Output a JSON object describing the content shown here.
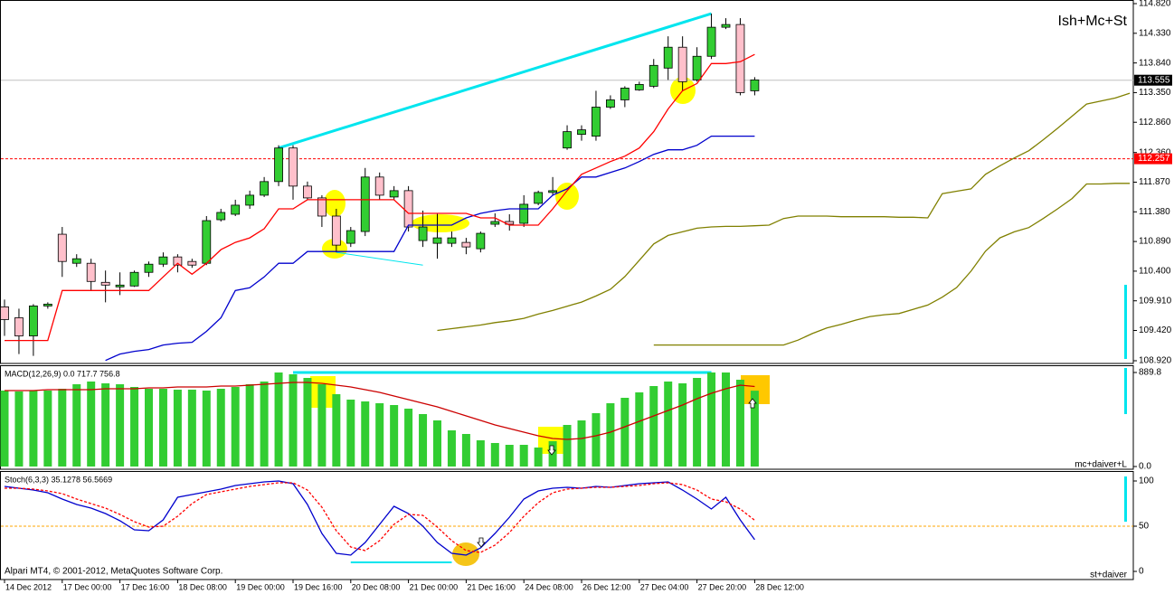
{
  "chart_data": [
    {
      "type": "candlestick",
      "title": "Ish+Mc+St",
      "categories": [
        "14 Dec 2012",
        null,
        null,
        null,
        "17 Dec 00:00",
        null,
        null,
        null,
        "17 Dec 16:00",
        null,
        null,
        null,
        "18 Dec 08:00",
        null,
        null,
        null,
        "19 Dec 00:00",
        null,
        null,
        null,
        "19 Dec 16:00",
        null,
        null,
        null,
        "20 Dec 08:00",
        null,
        null,
        null,
        "21 Dec 00:00",
        null,
        null,
        null,
        "21 Dec 16:00",
        null,
        null,
        null,
        "24 Dec 08:00",
        null,
        null,
        null,
        "26 Dec 12:00",
        null,
        null,
        null,
        "27 Dec 04:00",
        null,
        null,
        null,
        "27 Dec 20:00",
        null,
        null,
        null,
        "28 Dec 12:00",
        null,
        null,
        null,
        null,
        null,
        null,
        null,
        null,
        null,
        null,
        null,
        null,
        null,
        null,
        null,
        null,
        null,
        null,
        null,
        null,
        null,
        null,
        null,
        null,
        null,
        null
      ],
      "open": [
        109.81,
        109.63,
        109.33,
        109.825,
        111.01,
        110.53,
        110.53,
        110.215,
        110.14,
        110.155,
        110.38,
        110.515,
        110.635,
        110.56,
        110.53,
        111.25,
        111.34,
        111.49,
        111.655,
        111.88,
        112.435,
        111.805,
        111.61,
        111.31,
        110.86,
        111.055,
        111.955,
        111.625,
        111.73,
        110.905,
        110.86,
        110.86,
        110.875,
        110.77,
        111.175,
        111.22,
        111.19,
        111.52,
        111.7,
        112.435,
        112.66,
        112.63,
        113.11,
        113.23,
        113.395,
        113.455,
        113.755,
        114.1,
        113.56,
        113.95,
        114.43,
        114.475,
        113.38,
        null,
        null,
        null,
        null,
        null,
        null,
        null,
        null,
        null,
        null,
        null,
        null,
        null,
        null,
        null,
        null,
        null,
        null,
        null,
        null,
        null,
        null,
        null,
        null,
        null,
        null
      ],
      "high": [
        109.93,
        109.78,
        109.855,
        109.885,
        111.13,
        110.68,
        110.605,
        110.41,
        110.38,
        110.41,
        110.56,
        110.71,
        110.68,
        110.605,
        111.31,
        111.43,
        111.58,
        111.73,
        111.955,
        112.48,
        112.48,
        111.88,
        111.655,
        111.43,
        111.13,
        112.105,
        112.03,
        111.805,
        111.805,
        111.4,
        111.355,
        111.055,
        110.95,
        111.055,
        111.355,
        111.34,
        111.655,
        111.73,
        111.955,
        112.81,
        112.81,
        113.38,
        113.305,
        113.455,
        113.53,
        113.905,
        114.28,
        114.28,
        114.1,
        114.655,
        114.58,
        114.58,
        113.605,
        null,
        null,
        null,
        null,
        null,
        null,
        null,
        null,
        null,
        null,
        null,
        null,
        null,
        null,
        null,
        null,
        null,
        null,
        null,
        null,
        null,
        null,
        null,
        null,
        null,
        null
      ],
      "low": [
        109.33,
        109.03,
        109.0,
        109.78,
        110.305,
        110.47,
        110.08,
        109.885,
        110.005,
        110.14,
        110.305,
        110.47,
        110.38,
        110.455,
        110.5,
        111.22,
        111.31,
        111.43,
        111.625,
        111.805,
        111.58,
        111.58,
        111.13,
        110.71,
        110.8,
        110.98,
        111.58,
        111.58,
        111.055,
        110.8,
        110.605,
        110.8,
        110.68,
        110.71,
        111.13,
        111.07,
        111.13,
        111.49,
        111.655,
        112.405,
        112.555,
        112.555,
        113.08,
        113.11,
        113.38,
        113.425,
        113.56,
        113.38,
        113.53,
        113.905,
        114.4,
        113.305,
        113.305,
        null,
        null,
        null,
        null,
        null,
        null,
        null,
        null,
        null,
        null,
        null,
        null,
        null,
        null,
        null,
        null,
        null,
        null,
        null,
        null,
        null,
        null,
        null,
        null,
        null,
        null
      ],
      "close": [
        109.6,
        109.33,
        109.825,
        109.855,
        110.56,
        110.605,
        110.23,
        110.17,
        110.17,
        110.38,
        110.515,
        110.635,
        110.5,
        110.5,
        111.235,
        111.37,
        111.49,
        111.655,
        111.88,
        112.435,
        111.805,
        111.61,
        111.31,
        110.83,
        111.07,
        111.955,
        111.655,
        111.73,
        111.13,
        111.13,
        110.95,
        110.95,
        110.8,
        111.025,
        111.22,
        111.175,
        111.505,
        111.7,
        111.73,
        112.705,
        112.735,
        113.11,
        113.23,
        113.425,
        113.485,
        113.8,
        114.1,
        113.53,
        113.95,
        114.43,
        114.475,
        113.35,
        113.56,
        null,
        null,
        null,
        null,
        null,
        null,
        null,
        null,
        null,
        null,
        null,
        null,
        null,
        null,
        null,
        null,
        null,
        null,
        null,
        null,
        null,
        null,
        null,
        null,
        null,
        null
      ],
      "up_color": "#32cd32",
      "down_color": "#ffc0cb",
      "series": [
        {
          "color": "#808000",
          "values": [
            null,
            null,
            null,
            null,
            null,
            null,
            null,
            null,
            null,
            null,
            null,
            null,
            null,
            null,
            null,
            null,
            null,
            null,
            null,
            null,
            null,
            null,
            null,
            null,
            null,
            null,
            null,
            null,
            null,
            null,
            109.42,
            109.45,
            109.48,
            109.51,
            109.55,
            109.58,
            109.62,
            109.69,
            109.75,
            109.82,
            109.89,
            109.99,
            110.1,
            110.31,
            110.58,
            110.85,
            110.99,
            111.05,
            111.11,
            111.13,
            111.14,
            111.14,
            111.15,
            111.16,
            111.27,
            111.31,
            111.31,
            111.31,
            111.3,
            111.3,
            111.3,
            111.3,
            111.29,
            111.29,
            111.28,
            111.68,
            111.72,
            111.76,
            112.0,
            112.14,
            112.27,
            112.39,
            112.57,
            112.76,
            112.96,
            113.16,
            113.21,
            113.26,
            113.34
          ]
        },
        {
          "color": "#808000",
          "values": [
            null,
            null,
            null,
            null,
            null,
            null,
            null,
            null,
            null,
            null,
            null,
            null,
            null,
            null,
            null,
            null,
            null,
            null,
            null,
            null,
            null,
            null,
            null,
            null,
            null,
            null,
            null,
            null,
            null,
            null,
            null,
            null,
            null,
            null,
            null,
            null,
            null,
            null,
            null,
            null,
            null,
            null,
            null,
            null,
            null,
            109.18,
            109.18,
            109.18,
            109.18,
            109.18,
            109.18,
            109.18,
            109.18,
            109.18,
            109.18,
            109.26,
            109.37,
            109.46,
            109.52,
            109.59,
            109.65,
            109.68,
            109.7,
            109.77,
            109.84,
            109.97,
            110.13,
            110.4,
            110.73,
            110.95,
            111.05,
            111.12,
            111.27,
            111.43,
            111.6,
            111.84,
            111.84,
            111.85,
            111.85
          ]
        },
        {
          "color": "#0000cd",
          "values": [
            null,
            null,
            null,
            null,
            null,
            null,
            null,
            108.925,
            109.03,
            109.075,
            109.105,
            109.18,
            109.21,
            109.225,
            109.405,
            109.63,
            110.08,
            110.125,
            110.305,
            110.53,
            110.53,
            110.725,
            110.725,
            110.725,
            110.725,
            110.725,
            110.725,
            110.725,
            111.16,
            111.16,
            111.16,
            111.16,
            111.28,
            111.355,
            111.4,
            111.43,
            111.43,
            111.43,
            111.655,
            111.76,
            111.955,
            111.955,
            112.03,
            112.105,
            112.21,
            112.33,
            112.405,
            112.405,
            112.48,
            112.63,
            112.63,
            112.63,
            112.63,
            null,
            null,
            null,
            null,
            null,
            null,
            null,
            null,
            null,
            null,
            null,
            null,
            null,
            null,
            null,
            null,
            null,
            null,
            null,
            null,
            null,
            null,
            null,
            null,
            null,
            null
          ]
        },
        {
          "color": "#ff0000",
          "values": [
            109.255,
            109.255,
            109.255,
            109.255,
            110.08,
            110.08,
            110.08,
            110.08,
            110.08,
            110.08,
            110.08,
            110.305,
            110.53,
            110.35,
            110.53,
            110.755,
            110.875,
            110.95,
            111.1,
            111.43,
            111.43,
            111.58,
            111.58,
            111.58,
            111.58,
            111.58,
            111.58,
            111.58,
            111.355,
            111.355,
            111.355,
            111.355,
            111.355,
            111.28,
            111.28,
            111.16,
            111.16,
            111.16,
            111.43,
            111.73,
            112.0,
            112.105,
            112.21,
            112.3,
            112.435,
            112.705,
            113.08,
            113.38,
            113.5,
            113.83,
            113.83,
            113.86,
            113.98,
            null,
            null,
            null,
            null,
            null,
            null,
            null,
            null,
            null,
            null,
            null,
            null,
            null,
            null,
            null,
            null,
            null,
            null,
            null,
            null,
            null,
            null,
            null,
            null,
            null,
            null
          ]
        }
      ],
      "ylim": [
        108.875,
        114.88
      ],
      "yticks": [
        {
          "value": 114.82,
          "label": "114.820"
        },
        {
          "value": 114.33,
          "label": "114.330"
        },
        {
          "value": 113.84,
          "label": "113.840"
        },
        {
          "value": 113.35,
          "label": "113.350"
        },
        {
          "value": 112.86,
          "label": "112.860"
        },
        {
          "value": 112.36,
          "label": "112.360"
        },
        {
          "value": 111.87,
          "label": "111.870"
        },
        {
          "value": 111.38,
          "label": "111.380"
        },
        {
          "value": 110.89,
          "label": "110.890"
        },
        {
          "value": 110.4,
          "label": "110.400"
        },
        {
          "value": 109.91,
          "label": "109.910"
        },
        {
          "value": 109.42,
          "label": "109.420"
        },
        {
          "value": 108.92,
          "label": "108.920"
        }
      ],
      "hlines": [
        {
          "value": 113.555,
          "label": "113.555",
          "color": "#c0c0c0",
          "box": "#000000",
          "dashed": false
        },
        {
          "value": 112.257,
          "label": "112.257",
          "color": "#ff0000",
          "box": "#ff0000",
          "dashed": true
        }
      ],
      "trendlines": [
        {
          "x": [
            19,
            49
          ],
          "y": [
            112.435,
            114.655
          ],
          "color": "#00e5ee",
          "width": 3
        },
        {
          "x": [
            23,
            29
          ],
          "y": [
            110.71,
            110.5
          ],
          "color": "#00e5ee",
          "width": 1
        }
      ]
    },
    {
      "type": "bar",
      "title": "MACD(12,26,9) 0.0 717.7 756.8",
      "annotation": "mc+daiver+L",
      "values": [
        718.7,
        710.1,
        718.7,
        718.7,
        735.8,
        778.6,
        804.3,
        787.2,
        778.6,
        752.9,
        735.8,
        735.8,
        727.3,
        727.3,
        718.7,
        735.8,
        752.9,
        778.6,
        804.3,
        889.8,
        872.7,
        838.5,
        778.6,
        684.5,
        633.1,
        616.0,
        598.9,
        581.8,
        547.6,
        496.2,
        436.4,
        342.2,
        308.0,
        248.1,
        222.5,
        205.3,
        205.3,
        179.7,
        239.6,
        393.6,
        436.4,
        504.8,
        598.9,
        650.3,
        701.6,
        761.5,
        804.3,
        787.2,
        838.5,
        889.8,
        889.8,
        821.4,
        717.7
      ],
      "color": "#32cd32",
      "series": [
        {
          "color": "#cc0000",
          "values": [
            718.7,
            718.7,
            718.7,
            727.3,
            727.3,
            727.3,
            727.3,
            735.8,
            735.8,
            735.8,
            744.4,
            744.4,
            752.9,
            752.9,
            752.9,
            761.5,
            761.5,
            770.0,
            778.6,
            787.2,
            795.7,
            795.7,
            787.2,
            770.0,
            752.9,
            727.3,
            701.6,
            667.4,
            633.1,
            598.9,
            564.7,
            521.9,
            479.1,
            436.4,
            393.6,
            359.4,
            325.1,
            290.9,
            265.2,
            256.7,
            265.2,
            290.9,
            325.1,
            376.5,
            427.8,
            479.1,
            530.5,
            581.8,
            641.7,
            693.0,
            735.8,
            770.0,
            756.8
          ]
        }
      ],
      "ylim": [
        -25.7,
        958.3
      ],
      "yticks": [
        {
          "value": 889.8,
          "label": "889.8"
        },
        {
          "value": 0,
          "label": "0.0"
        }
      ],
      "trendlines": [
        {
          "x": [
            20,
            49
          ],
          "y": [
            889.8,
            889.8
          ],
          "color": "#00e5ee",
          "width": 3
        }
      ]
    },
    {
      "type": "line",
      "title": "Stoch(6,3,3) 35.1278 56.5669",
      "annotation": "st+daiver",
      "copyright": "Alpari MT4, © 2001-2012, MetaQuotes Software Corp.",
      "series": [
        {
          "color": "#0000cd",
          "dashed": false,
          "values": [
            94,
            92,
            90,
            87,
            80,
            74,
            70,
            64,
            56,
            46,
            45,
            57,
            82,
            85,
            88,
            91,
            95,
            97,
            99,
            100,
            97,
            74,
            42,
            20,
            18,
            32,
            52,
            72,
            64,
            50,
            32,
            20,
            18,
            26,
            42,
            60,
            80,
            89,
            92,
            93,
            92,
            94,
            93,
            95,
            97,
            98,
            99,
            90,
            80,
            69,
            82,
            57,
            35.1278
          ]
        },
        {
          "color": "#ff0000",
          "dashed": true,
          "values": [
            92,
            92,
            91,
            89,
            86,
            80,
            75,
            70,
            63,
            55,
            49,
            50,
            61,
            75,
            85,
            88,
            91,
            94,
            96,
            98,
            98,
            90,
            71,
            45,
            27,
            23,
            34,
            52,
            63,
            62,
            49,
            34,
            23,
            21,
            29,
            43,
            61,
            76,
            87,
            91,
            92,
            93,
            93,
            94,
            95,
            97,
            98,
            96,
            90,
            80,
            77,
            69,
            56.5669
          ]
        }
      ],
      "levels": [
        50
      ],
      "level_color": "#ffa500",
      "ylim": [
        -9,
        111
      ],
      "yticks": [
        0,
        50,
        100
      ],
      "trendlines": [
        {
          "x": [
            24,
            31
          ],
          "y": [
            10,
            10
          ],
          "color": "#00e5ee",
          "width": 2
        }
      ]
    }
  ]
}
